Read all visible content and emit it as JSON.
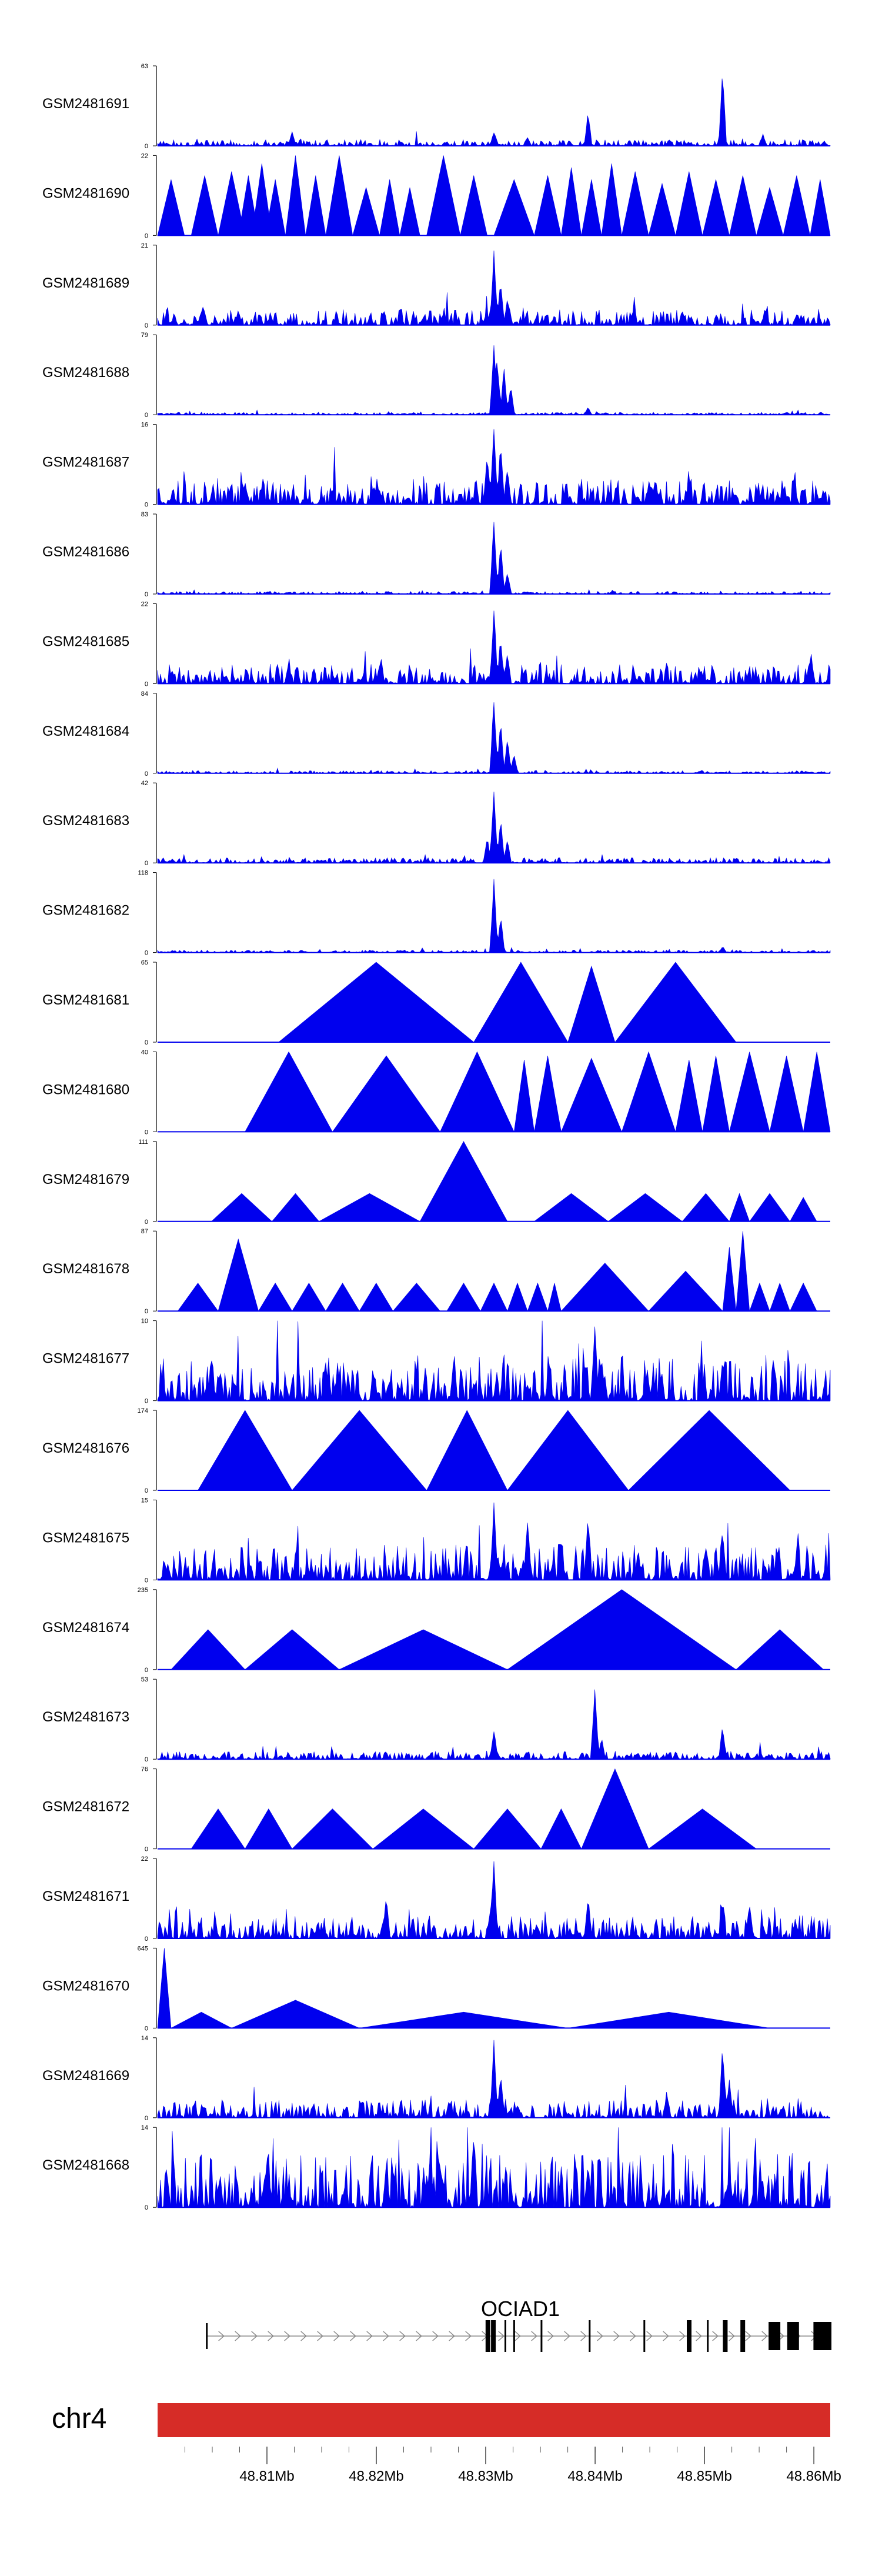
{
  "chart_data": {
    "type": "area",
    "title": "",
    "tracks": [
      {
        "name": "GSM2481691",
        "ymax": 63,
        "ymin": 0,
        "style": "noisy",
        "base": 0.05,
        "peaks": [
          [
            0.2,
            0.18
          ],
          [
            0.5,
            0.18
          ],
          [
            0.55,
            0.12
          ],
          [
            0.64,
            0.45
          ],
          [
            0.84,
            1.0
          ],
          [
            0.9,
            0.15
          ]
        ]
      },
      {
        "name": "GSM2481690",
        "ymax": 22,
        "ymin": 0,
        "style": "tri",
        "tri": [
          [
            0.0,
            0.04,
            0.7
          ],
          [
            0.05,
            0.09,
            0.75
          ],
          [
            0.09,
            0.13,
            0.8
          ],
          [
            0.12,
            0.15,
            0.75
          ],
          [
            0.14,
            0.17,
            0.9
          ],
          [
            0.16,
            0.19,
            0.7
          ],
          [
            0.19,
            0.22,
            1.0
          ],
          [
            0.22,
            0.25,
            0.75
          ],
          [
            0.25,
            0.29,
            1.0
          ],
          [
            0.29,
            0.33,
            0.6
          ],
          [
            0.33,
            0.36,
            0.7
          ],
          [
            0.36,
            0.39,
            0.6
          ],
          [
            0.4,
            0.45,
            1.0
          ],
          [
            0.45,
            0.49,
            0.75
          ],
          [
            0.5,
            0.56,
            0.7
          ],
          [
            0.56,
            0.6,
            0.75
          ],
          [
            0.6,
            0.63,
            0.85
          ],
          [
            0.63,
            0.66,
            0.7
          ],
          [
            0.66,
            0.69,
            0.9
          ],
          [
            0.69,
            0.73,
            0.8
          ],
          [
            0.73,
            0.77,
            0.65
          ],
          [
            0.77,
            0.81,
            0.8
          ],
          [
            0.81,
            0.85,
            0.7
          ],
          [
            0.85,
            0.89,
            0.75
          ],
          [
            0.89,
            0.93,
            0.6
          ],
          [
            0.93,
            0.97,
            0.75
          ],
          [
            0.97,
            1.0,
            0.7
          ]
        ]
      },
      {
        "name": "GSM2481689",
        "ymax": 21,
        "ymin": 0,
        "style": "noisy",
        "base": 0.12,
        "peaks": [
          [
            0.5,
            1.0
          ],
          [
            0.51,
            0.6
          ],
          [
            0.52,
            0.35
          ],
          [
            0.12,
            0.2
          ],
          [
            0.78,
            0.2
          ]
        ]
      },
      {
        "name": "GSM2481688",
        "ymax": 79,
        "ymin": 0,
        "style": "noisy",
        "base": 0.02,
        "peaks": [
          [
            0.5,
            1.0
          ],
          [
            0.505,
            0.75
          ],
          [
            0.515,
            0.6
          ],
          [
            0.525,
            0.4
          ],
          [
            0.64,
            0.1
          ]
        ]
      },
      {
        "name": "GSM2481687",
        "ymax": 16,
        "ymin": 0,
        "style": "noisy",
        "base": 0.2,
        "peaks": [
          [
            0.5,
            1.0
          ],
          [
            0.51,
            0.8
          ],
          [
            0.49,
            0.7
          ],
          [
            0.52,
            0.5
          ],
          [
            0.13,
            0.3
          ],
          [
            0.74,
            0.35
          ]
        ]
      },
      {
        "name": "GSM2481686",
        "ymax": 83,
        "ymin": 0,
        "style": "noisy",
        "base": 0.02,
        "peaks": [
          [
            0.5,
            1.0
          ],
          [
            0.51,
            0.65
          ],
          [
            0.52,
            0.3
          ]
        ]
      },
      {
        "name": "GSM2481685",
        "ymax": 22,
        "ymin": 0,
        "style": "noisy",
        "base": 0.15,
        "peaks": [
          [
            0.5,
            1.0
          ],
          [
            0.51,
            0.6
          ],
          [
            0.52,
            0.4
          ],
          [
            0.33,
            0.25
          ],
          [
            0.97,
            0.3
          ]
        ]
      },
      {
        "name": "GSM2481684",
        "ymax": 84,
        "ymin": 0,
        "style": "noisy",
        "base": 0.02,
        "peaks": [
          [
            0.5,
            1.0
          ],
          [
            0.51,
            0.7
          ],
          [
            0.52,
            0.45
          ],
          [
            0.53,
            0.25
          ]
        ]
      },
      {
        "name": "GSM2481683",
        "ymax": 42,
        "ymin": 0,
        "style": "noisy",
        "base": 0.04,
        "peaks": [
          [
            0.5,
            1.0
          ],
          [
            0.51,
            0.6
          ],
          [
            0.49,
            0.35
          ],
          [
            0.52,
            0.3
          ]
        ]
      },
      {
        "name": "GSM2481682",
        "ymax": 118,
        "ymin": 0,
        "style": "noisy",
        "base": 0.02,
        "peaks": [
          [
            0.5,
            1.0
          ],
          [
            0.51,
            0.5
          ],
          [
            0.84,
            0.08
          ]
        ]
      },
      {
        "name": "GSM2481681",
        "ymax": 65,
        "ymin": 0,
        "style": "tri",
        "tri": [
          [
            0.18,
            0.47,
            1.0
          ],
          [
            0.47,
            0.61,
            1.0
          ],
          [
            0.61,
            0.68,
            0.95
          ],
          [
            0.68,
            0.86,
            1.0
          ]
        ]
      },
      {
        "name": "GSM2481680",
        "ymax": 40,
        "ymin": 0,
        "style": "tri",
        "tri": [
          [
            0.13,
            0.26,
            1.0
          ],
          [
            0.26,
            0.42,
            0.95
          ],
          [
            0.42,
            0.53,
            1.0
          ],
          [
            0.53,
            0.56,
            0.9
          ],
          [
            0.56,
            0.6,
            0.95
          ],
          [
            0.6,
            0.69,
            0.92
          ],
          [
            0.69,
            0.77,
            1.0
          ],
          [
            0.77,
            0.81,
            0.9
          ],
          [
            0.81,
            0.85,
            0.95
          ],
          [
            0.85,
            0.91,
            1.0
          ],
          [
            0.91,
            0.96,
            0.95
          ],
          [
            0.96,
            1.0,
            1.0
          ]
        ]
      },
      {
        "name": "GSM2481679",
        "ymax": 111,
        "ymin": 0,
        "style": "tri",
        "tri": [
          [
            0.08,
            0.17,
            0.35
          ],
          [
            0.17,
            0.24,
            0.35
          ],
          [
            0.24,
            0.39,
            0.35
          ],
          [
            0.39,
            0.52,
            1.0
          ],
          [
            0.56,
            0.67,
            0.35
          ],
          [
            0.67,
            0.78,
            0.35
          ],
          [
            0.78,
            0.85,
            0.35
          ],
          [
            0.85,
            0.88,
            0.35
          ],
          [
            0.88,
            0.94,
            0.35
          ],
          [
            0.94,
            0.98,
            0.3
          ]
        ]
      },
      {
        "name": "GSM2481678",
        "ymax": 87,
        "ymin": 0,
        "style": "tri",
        "tri": [
          [
            0.03,
            0.09,
            0.35
          ],
          [
            0.09,
            0.15,
            0.9
          ],
          [
            0.15,
            0.2,
            0.35
          ],
          [
            0.2,
            0.25,
            0.35
          ],
          [
            0.25,
            0.3,
            0.35
          ],
          [
            0.3,
            0.35,
            0.35
          ],
          [
            0.35,
            0.42,
            0.35
          ],
          [
            0.43,
            0.48,
            0.35
          ],
          [
            0.48,
            0.52,
            0.35
          ],
          [
            0.52,
            0.55,
            0.35
          ],
          [
            0.55,
            0.58,
            0.35
          ],
          [
            0.58,
            0.6,
            0.35
          ],
          [
            0.6,
            0.73,
            0.6
          ],
          [
            0.73,
            0.84,
            0.5
          ],
          [
            0.84,
            0.86,
            0.8
          ],
          [
            0.86,
            0.88,
            1.0
          ],
          [
            0.88,
            0.91,
            0.35
          ],
          [
            0.91,
            0.94,
            0.35
          ],
          [
            0.94,
            0.98,
            0.35
          ]
        ]
      },
      {
        "name": "GSM2481677",
        "ymax": 10,
        "ymin": 0,
        "style": "noisy",
        "base": 0.35,
        "peaks": [
          [
            0.65,
            1.0
          ],
          [
            0.66,
            0.6
          ],
          [
            0.08,
            0.6
          ],
          [
            0.84,
            0.55
          ],
          [
            0.44,
            0.45
          ]
        ]
      },
      {
        "name": "GSM2481676",
        "ymax": 174,
        "ymin": 0,
        "style": "tri",
        "tri": [
          [
            0.06,
            0.2,
            1.0
          ],
          [
            0.2,
            0.4,
            1.0
          ],
          [
            0.4,
            0.52,
            1.0
          ],
          [
            0.52,
            0.7,
            1.0
          ],
          [
            0.7,
            0.94,
            1.0
          ]
        ]
      },
      {
        "name": "GSM2481675",
        "ymax": 15,
        "ymin": 0,
        "style": "noisy",
        "base": 0.28,
        "peaks": [
          [
            0.5,
            1.0
          ],
          [
            0.55,
            0.8
          ],
          [
            0.64,
            0.9
          ],
          [
            0.84,
            0.7
          ],
          [
            0.95,
            0.3
          ]
        ]
      },
      {
        "name": "GSM2481674",
        "ymax": 235,
        "ymin": 0,
        "style": "tri",
        "tri": [
          [
            0.02,
            0.13,
            0.5
          ],
          [
            0.13,
            0.27,
            0.5
          ],
          [
            0.27,
            0.52,
            0.5
          ],
          [
            0.52,
            0.86,
            1.0
          ],
          [
            0.86,
            0.99,
            0.5
          ]
        ]
      },
      {
        "name": "GSM2481673",
        "ymax": 53,
        "ymin": 0,
        "style": "noisy",
        "base": 0.06,
        "peaks": [
          [
            0.5,
            0.4
          ],
          [
            0.65,
            1.0
          ],
          [
            0.66,
            0.3
          ],
          [
            0.84,
            0.45
          ]
        ]
      },
      {
        "name": "GSM2481672",
        "ymax": 76,
        "ymin": 0,
        "style": "tri",
        "tri": [
          [
            0.05,
            0.13,
            0.5
          ],
          [
            0.13,
            0.2,
            0.5
          ],
          [
            0.2,
            0.32,
            0.5
          ],
          [
            0.32,
            0.47,
            0.5
          ],
          [
            0.47,
            0.57,
            0.5
          ],
          [
            0.57,
            0.63,
            0.5
          ],
          [
            0.63,
            0.73,
            1.0
          ],
          [
            0.73,
            0.89,
            0.5
          ]
        ]
      },
      {
        "name": "GSM2481671",
        "ymax": 22,
        "ymin": 0,
        "style": "noisy",
        "base": 0.18,
        "peaks": [
          [
            0.5,
            1.0
          ],
          [
            0.34,
            0.55
          ],
          [
            0.64,
            0.55
          ],
          [
            0.84,
            0.5
          ],
          [
            0.88,
            0.5
          ]
        ]
      },
      {
        "name": "GSM2481670",
        "ymax": 645,
        "ymin": 0,
        "style": "tri",
        "tri": [
          [
            0.0,
            0.02,
            1.0
          ],
          [
            0.02,
            0.11,
            0.2
          ],
          [
            0.11,
            0.3,
            0.35
          ],
          [
            0.3,
            0.61,
            0.2
          ],
          [
            0.61,
            0.91,
            0.2
          ]
        ]
      },
      {
        "name": "GSM2481669",
        "ymax": 14,
        "ymin": 0,
        "style": "noisy",
        "base": 0.14,
        "peaks": [
          [
            0.5,
            1.0
          ],
          [
            0.51,
            0.6
          ],
          [
            0.84,
            0.95
          ],
          [
            0.85,
            0.5
          ]
        ]
      },
      {
        "name": "GSM2481668",
        "ymax": 14,
        "ymin": 0,
        "style": "noisy",
        "base": 0.42,
        "peaks": [
          [
            0.47,
            1.0
          ],
          [
            0.16,
            0.5
          ],
          [
            0.34,
            0.55
          ],
          [
            0.64,
            0.55
          ],
          [
            0.85,
            0.5
          ]
        ]
      }
    ],
    "gene": {
      "name": "OCIAD1",
      "start_mb": 48.8045,
      "end_mb": 48.8615,
      "exons_mb": [
        48.8302,
        48.8307,
        48.8318,
        48.8326,
        48.8351,
        48.8395,
        48.8445,
        48.8486,
        48.8503,
        48.8519,
        48.8535,
        48.8564,
        48.8581,
        48.8605
      ]
    },
    "chromosome": {
      "name": "chr4",
      "color": "#d62c27"
    },
    "x_axis": {
      "range_mb": [
        48.8,
        48.8615
      ],
      "tick_labels": [
        "48.81Mb",
        "48.82Mb",
        "48.83Mb",
        "48.84Mb",
        "48.85Mb",
        "48.86Mb"
      ],
      "tick_values_mb": [
        48.81,
        48.82,
        48.83,
        48.84,
        48.85,
        48.86
      ],
      "minor_step_mb": 0.0025
    },
    "fill_color": "#0000ee"
  }
}
